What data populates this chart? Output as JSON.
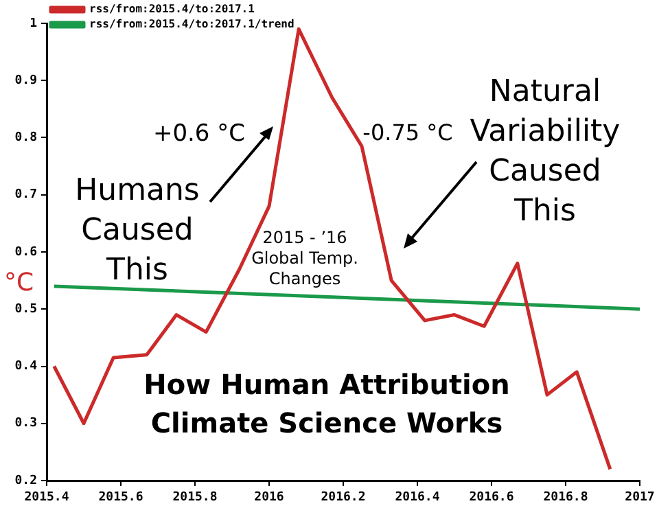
{
  "chart_data": {
    "type": "line",
    "ylabel": "°C",
    "legend": "top left",
    "marker": "none",
    "line_style": "solid",
    "grid": false,
    "xlim": [
      2015.4,
      2017
    ],
    "xticks": [
      2015.4,
      2015.6,
      2015.8,
      2016,
      2016.2,
      2016.4,
      2016.6,
      2016.8,
      2017
    ],
    "ylim": [
      0.2,
      1
    ],
    "yticks": [
      0.2,
      0.3,
      0.4,
      0.5,
      0.6,
      0.7,
      0.8,
      0.9,
      1
    ],
    "series": [
      {
        "name": "rss/from:2015.4/to:2017.1",
        "color": "#cc2a2a",
        "x": [
          2015.42,
          2015.5,
          2015.58,
          2015.67,
          2015.75,
          2015.83,
          2015.92,
          2016.0,
          2016.08,
          2016.17,
          2016.25,
          2016.33,
          2016.42,
          2016.5,
          2016.58,
          2016.67,
          2016.75,
          2016.83,
          2016.92
        ],
        "values": [
          0.4,
          0.3,
          0.415,
          0.42,
          0.49,
          0.46,
          0.57,
          0.68,
          0.99,
          0.87,
          0.785,
          0.55,
          0.48,
          0.49,
          0.47,
          0.58,
          0.35,
          0.39,
          0.22
        ]
      },
      {
        "name": "rss/from:2015.4/to:2017.1/trend",
        "color": "#1a9a4a",
        "x": [
          2015.42,
          2017
        ],
        "values": [
          0.54,
          0.5
        ]
      }
    ],
    "annotations": [
      "+0.6 °C",
      "-0.75 °C",
      "Humans Caused This",
      "Natural Variability Caused This",
      "2015 - ’16 Global Temp. Changes",
      "How Human Attribution Climate Science Works"
    ]
  }
}
